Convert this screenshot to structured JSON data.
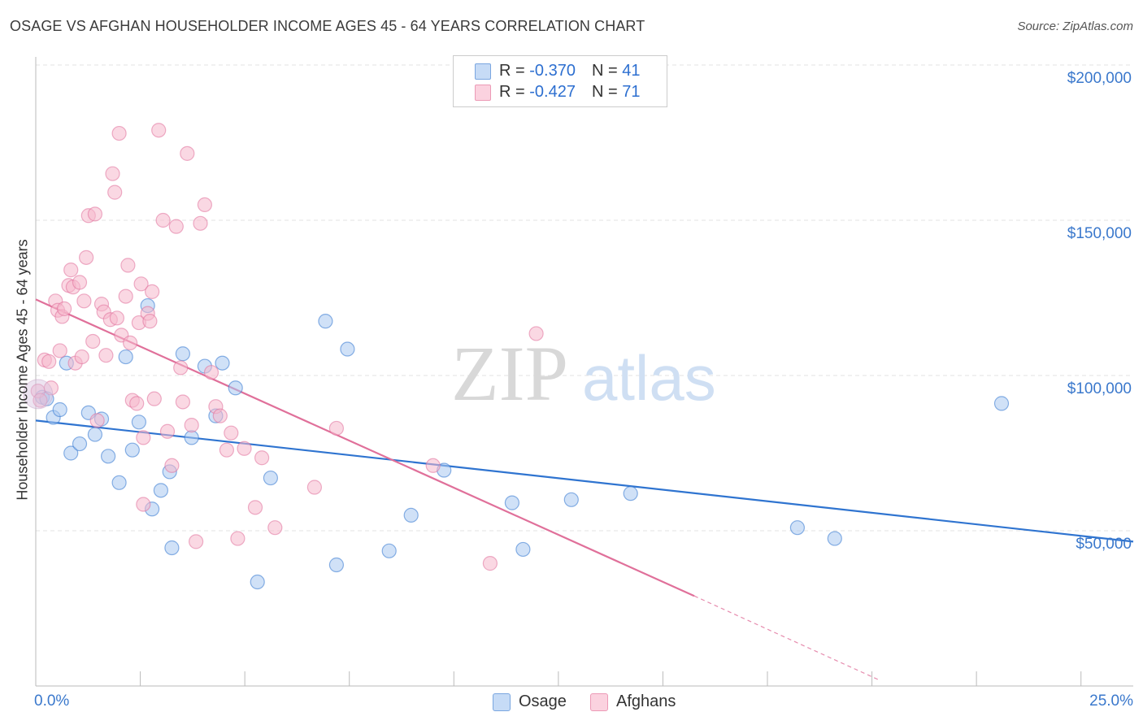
{
  "title": "OSAGE VS AFGHAN HOUSEHOLDER INCOME AGES 45 - 64 YEARS CORRELATION CHART",
  "source": "Source: ZipAtlas.com",
  "watermark": {
    "zip": "ZIP",
    "atlas": "atlas"
  },
  "legend_top": [
    {
      "r_label": "R = ",
      "r_value": "-0.370",
      "n_label": "N = ",
      "n_value": "41",
      "color": "#a9c8f0"
    },
    {
      "r_label": "R = ",
      "r_value": "-0.427",
      "n_label": "N = ",
      "n_value": "71",
      "color": "#f6b8cc"
    }
  ],
  "legend_bottom": [
    {
      "label": "Osage",
      "color": "#a9c8f0"
    },
    {
      "label": "Afghans",
      "color": "#f6b8cc"
    }
  ],
  "chart_data": {
    "type": "scatter",
    "title": "OSAGE VS AFGHAN HOUSEHOLDER INCOME AGES 45 - 64 YEARS CORRELATION CHART",
    "xlabel": "",
    "ylabel": "Householder Income Ages 45 - 64 years",
    "xlim": [
      0,
      25
    ],
    "ylim": [
      0,
      205000
    ],
    "x_tick_labels": [
      "0.0%",
      "25.0%"
    ],
    "y_ticks": [
      50000,
      100000,
      150000,
      200000
    ],
    "y_tick_labels": [
      "$50,000",
      "$100,000",
      "$150,000",
      "$200,000"
    ],
    "grid": true,
    "legend_placement": "top-center and bottom",
    "series": [
      {
        "name": "Osage",
        "color": "#2f74d0",
        "fill": "#a9c8f0",
        "trend": {
          "x0": 0,
          "y0": 85500,
          "x1": 25,
          "y1": 46500,
          "dashed_beyond": null
        },
        "points": [
          [
            0.15,
            93000
          ],
          [
            0.25,
            92500
          ],
          [
            0.4,
            86500
          ],
          [
            0.55,
            89000
          ],
          [
            0.7,
            104000
          ],
          [
            0.8,
            75000
          ],
          [
            1.0,
            78000
          ],
          [
            1.2,
            88000
          ],
          [
            1.35,
            81000
          ],
          [
            1.5,
            86000
          ],
          [
            1.65,
            74000
          ],
          [
            1.9,
            65500
          ],
          [
            2.05,
            106000
          ],
          [
            2.2,
            76000
          ],
          [
            2.35,
            85000
          ],
          [
            2.55,
            122500
          ],
          [
            2.65,
            57000
          ],
          [
            2.85,
            63000
          ],
          [
            3.05,
            69000
          ],
          [
            3.1,
            44500
          ],
          [
            3.35,
            107000
          ],
          [
            3.55,
            80000
          ],
          [
            3.85,
            103000
          ],
          [
            4.1,
            87000
          ],
          [
            4.25,
            104000
          ],
          [
            4.55,
            96000
          ],
          [
            5.05,
            33500
          ],
          [
            5.35,
            67000
          ],
          [
            6.6,
            117500
          ],
          [
            6.85,
            39000
          ],
          [
            7.1,
            108500
          ],
          [
            8.05,
            43500
          ],
          [
            8.55,
            55000
          ],
          [
            9.3,
            69500
          ],
          [
            10.85,
            59000
          ],
          [
            11.1,
            44000
          ],
          [
            12.2,
            60000
          ],
          [
            13.55,
            62000
          ],
          [
            17.35,
            51000
          ],
          [
            18.2,
            47500
          ],
          [
            22.0,
            91000
          ]
        ]
      },
      {
        "name": "Afghans",
        "color": "#e0709a",
        "fill": "#f6b8cc",
        "trend": {
          "x0": 0,
          "y0": 124500,
          "x1": 15,
          "y1": 29000,
          "dashed_to": [
            19.2,
            2000
          ]
        },
        "points": [
          [
            0.05,
            95000
          ],
          [
            0.1,
            92000
          ],
          [
            0.2,
            105000
          ],
          [
            0.3,
            104500
          ],
          [
            0.35,
            96000
          ],
          [
            0.45,
            124000
          ],
          [
            0.5,
            121000
          ],
          [
            0.55,
            108000
          ],
          [
            0.6,
            119000
          ],
          [
            0.65,
            121500
          ],
          [
            0.75,
            129000
          ],
          [
            0.8,
            134000
          ],
          [
            0.85,
            128500
          ],
          [
            0.9,
            104000
          ],
          [
            1.0,
            130000
          ],
          [
            1.05,
            106000
          ],
          [
            1.1,
            124000
          ],
          [
            1.15,
            138000
          ],
          [
            1.2,
            151500
          ],
          [
            1.3,
            111000
          ],
          [
            1.35,
            152000
          ],
          [
            1.4,
            85500
          ],
          [
            1.5,
            123000
          ],
          [
            1.55,
            120500
          ],
          [
            1.6,
            106500
          ],
          [
            1.7,
            118000
          ],
          [
            1.75,
            165000
          ],
          [
            1.8,
            159000
          ],
          [
            1.85,
            118500
          ],
          [
            1.9,
            178000
          ],
          [
            1.95,
            113000
          ],
          [
            2.05,
            125500
          ],
          [
            2.1,
            135500
          ],
          [
            2.15,
            110500
          ],
          [
            2.2,
            92000
          ],
          [
            2.3,
            91000
          ],
          [
            2.35,
            117000
          ],
          [
            2.4,
            129500
          ],
          [
            2.45,
            80000
          ],
          [
            2.55,
            120000
          ],
          [
            2.6,
            117500
          ],
          [
            2.65,
            127000
          ],
          [
            2.7,
            92500
          ],
          [
            2.8,
            179000
          ],
          [
            2.9,
            150000
          ],
          [
            3.0,
            82000
          ],
          [
            3.1,
            71000
          ],
          [
            3.2,
            148000
          ],
          [
            3.3,
            102500
          ],
          [
            3.35,
            91500
          ],
          [
            3.45,
            171500
          ],
          [
            3.55,
            84000
          ],
          [
            3.65,
            46500
          ],
          [
            3.75,
            149000
          ],
          [
            3.85,
            155000
          ],
          [
            4.0,
            101000
          ],
          [
            4.1,
            90000
          ],
          [
            4.2,
            87000
          ],
          [
            4.35,
            76000
          ],
          [
            4.45,
            81500
          ],
          [
            4.6,
            47500
          ],
          [
            4.75,
            76500
          ],
          [
            5.0,
            57500
          ],
          [
            5.15,
            73500
          ],
          [
            5.45,
            51000
          ],
          [
            6.35,
            64000
          ],
          [
            6.85,
            83000
          ],
          [
            9.05,
            71000
          ],
          [
            10.35,
            39500
          ],
          [
            11.4,
            113500
          ],
          [
            2.45,
            58500
          ]
        ]
      }
    ]
  }
}
